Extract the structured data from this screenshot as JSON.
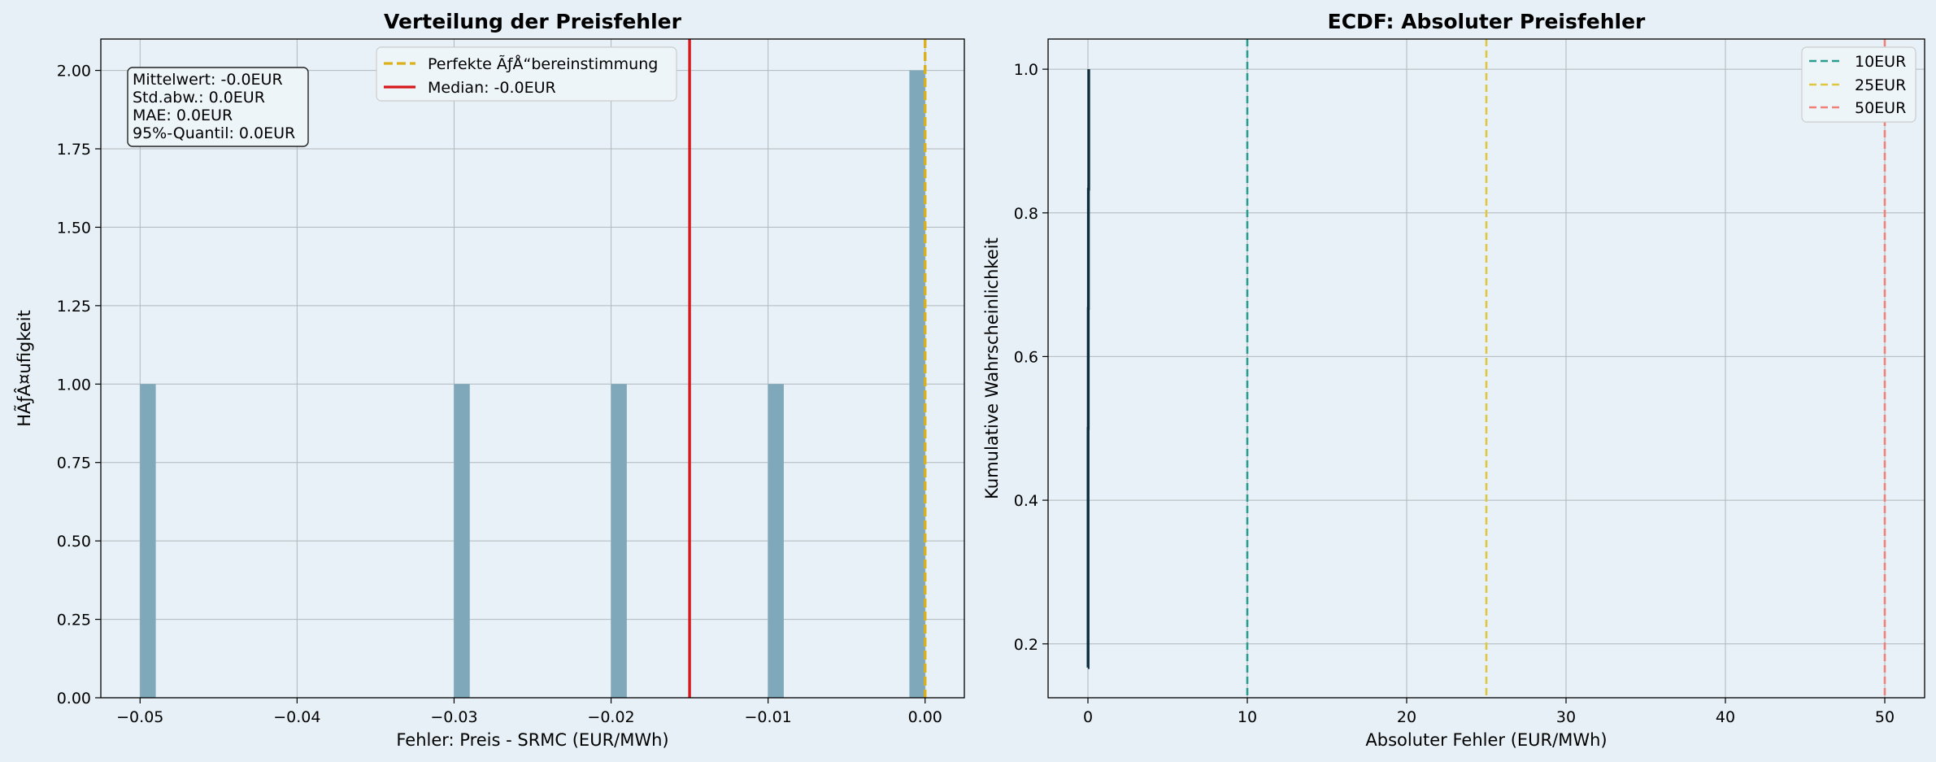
{
  "chart_data": [
    {
      "type": "bar",
      "title": "Verteilung der Preisfehler",
      "xlabel": "Fehler: Preis - SRMC (EUR/MWh)",
      "ylabel": "HÃƒÂ¤ufigkeit",
      "xlim": [
        -0.0525,
        0.0025
      ],
      "ylim": [
        0,
        2.1
      ],
      "xticks": [
        -0.05,
        -0.04,
        -0.03,
        -0.02,
        -0.01,
        0.0
      ],
      "xtick_labels": [
        "−0.05",
        "−0.04",
        "−0.03",
        "−0.02",
        "−0.01",
        "0.00"
      ],
      "yticks": [
        0.0,
        0.25,
        0.5,
        0.75,
        1.0,
        1.25,
        1.5,
        1.75,
        2.0
      ],
      "ytick_labels": [
        "0.00",
        "0.25",
        "0.50",
        "0.75",
        "1.00",
        "1.25",
        "1.50",
        "1.75",
        "2.00"
      ],
      "grid": true,
      "bar_color": "#7fa9ba",
      "bins": [
        {
          "x0": -0.05,
          "x1": -0.049,
          "count": 1
        },
        {
          "x0": -0.03,
          "x1": -0.029,
          "count": 1
        },
        {
          "x0": -0.02,
          "x1": -0.019,
          "count": 1
        },
        {
          "x0": -0.01,
          "x1": -0.009,
          "count": 1
        },
        {
          "x0": -0.001,
          "x1": 0.0,
          "count": 2
        }
      ],
      "vlines": [
        {
          "x": 0.0,
          "label": "Perfekte ÃƒÅ“bereinstimmung",
          "color": "#dcb01b",
          "style": "dashed"
        },
        {
          "x": -0.015,
          "label": "Median: -0.0EUR",
          "color": "#d7191c",
          "style": "solid"
        }
      ],
      "legend": "upper center",
      "stats_box": [
        "Mittelwert: -0.0EUR",
        "Std.abw.: 0.0EUR",
        "MAE: 0.0EUR",
        "95%-Quantil: 0.0EUR"
      ]
    },
    {
      "type": "line",
      "title": "ECDF: Absoluter Preisfehler",
      "xlabel": "Absoluter Fehler (EUR/MWh)",
      "ylabel": "Kumulative Wahrscheinlichkeit",
      "xlim": [
        -2.5,
        52.5
      ],
      "ylim": [
        0.125,
        1.042
      ],
      "xticks": [
        0,
        10,
        20,
        30,
        40,
        50
      ],
      "xtick_labels": [
        "0",
        "10",
        "20",
        "30",
        "40",
        "50"
      ],
      "yticks": [
        0.2,
        0.4,
        0.6,
        0.8,
        1.0
      ],
      "ytick_labels": [
        "0.2",
        "0.4",
        "0.6",
        "0.8",
        "1.0"
      ],
      "grid": true,
      "series": [
        {
          "x": [
            0.0,
            0.01,
            0.02,
            0.03,
            0.05
          ],
          "y": [
            0.167,
            0.5,
            0.667,
            0.833,
            1.0
          ],
          "color": "#0d2c40"
        }
      ],
      "vlines": [
        {
          "x": 10,
          "label": "10EUR",
          "color": "#2a9d8f",
          "style": "dashed"
        },
        {
          "x": 25,
          "label": "25EUR",
          "color": "#e0c53e",
          "style": "dashed"
        },
        {
          "x": 50,
          "label": "50EUR",
          "color": "#f08078",
          "style": "dashed"
        }
      ],
      "legend": "top-right"
    }
  ]
}
